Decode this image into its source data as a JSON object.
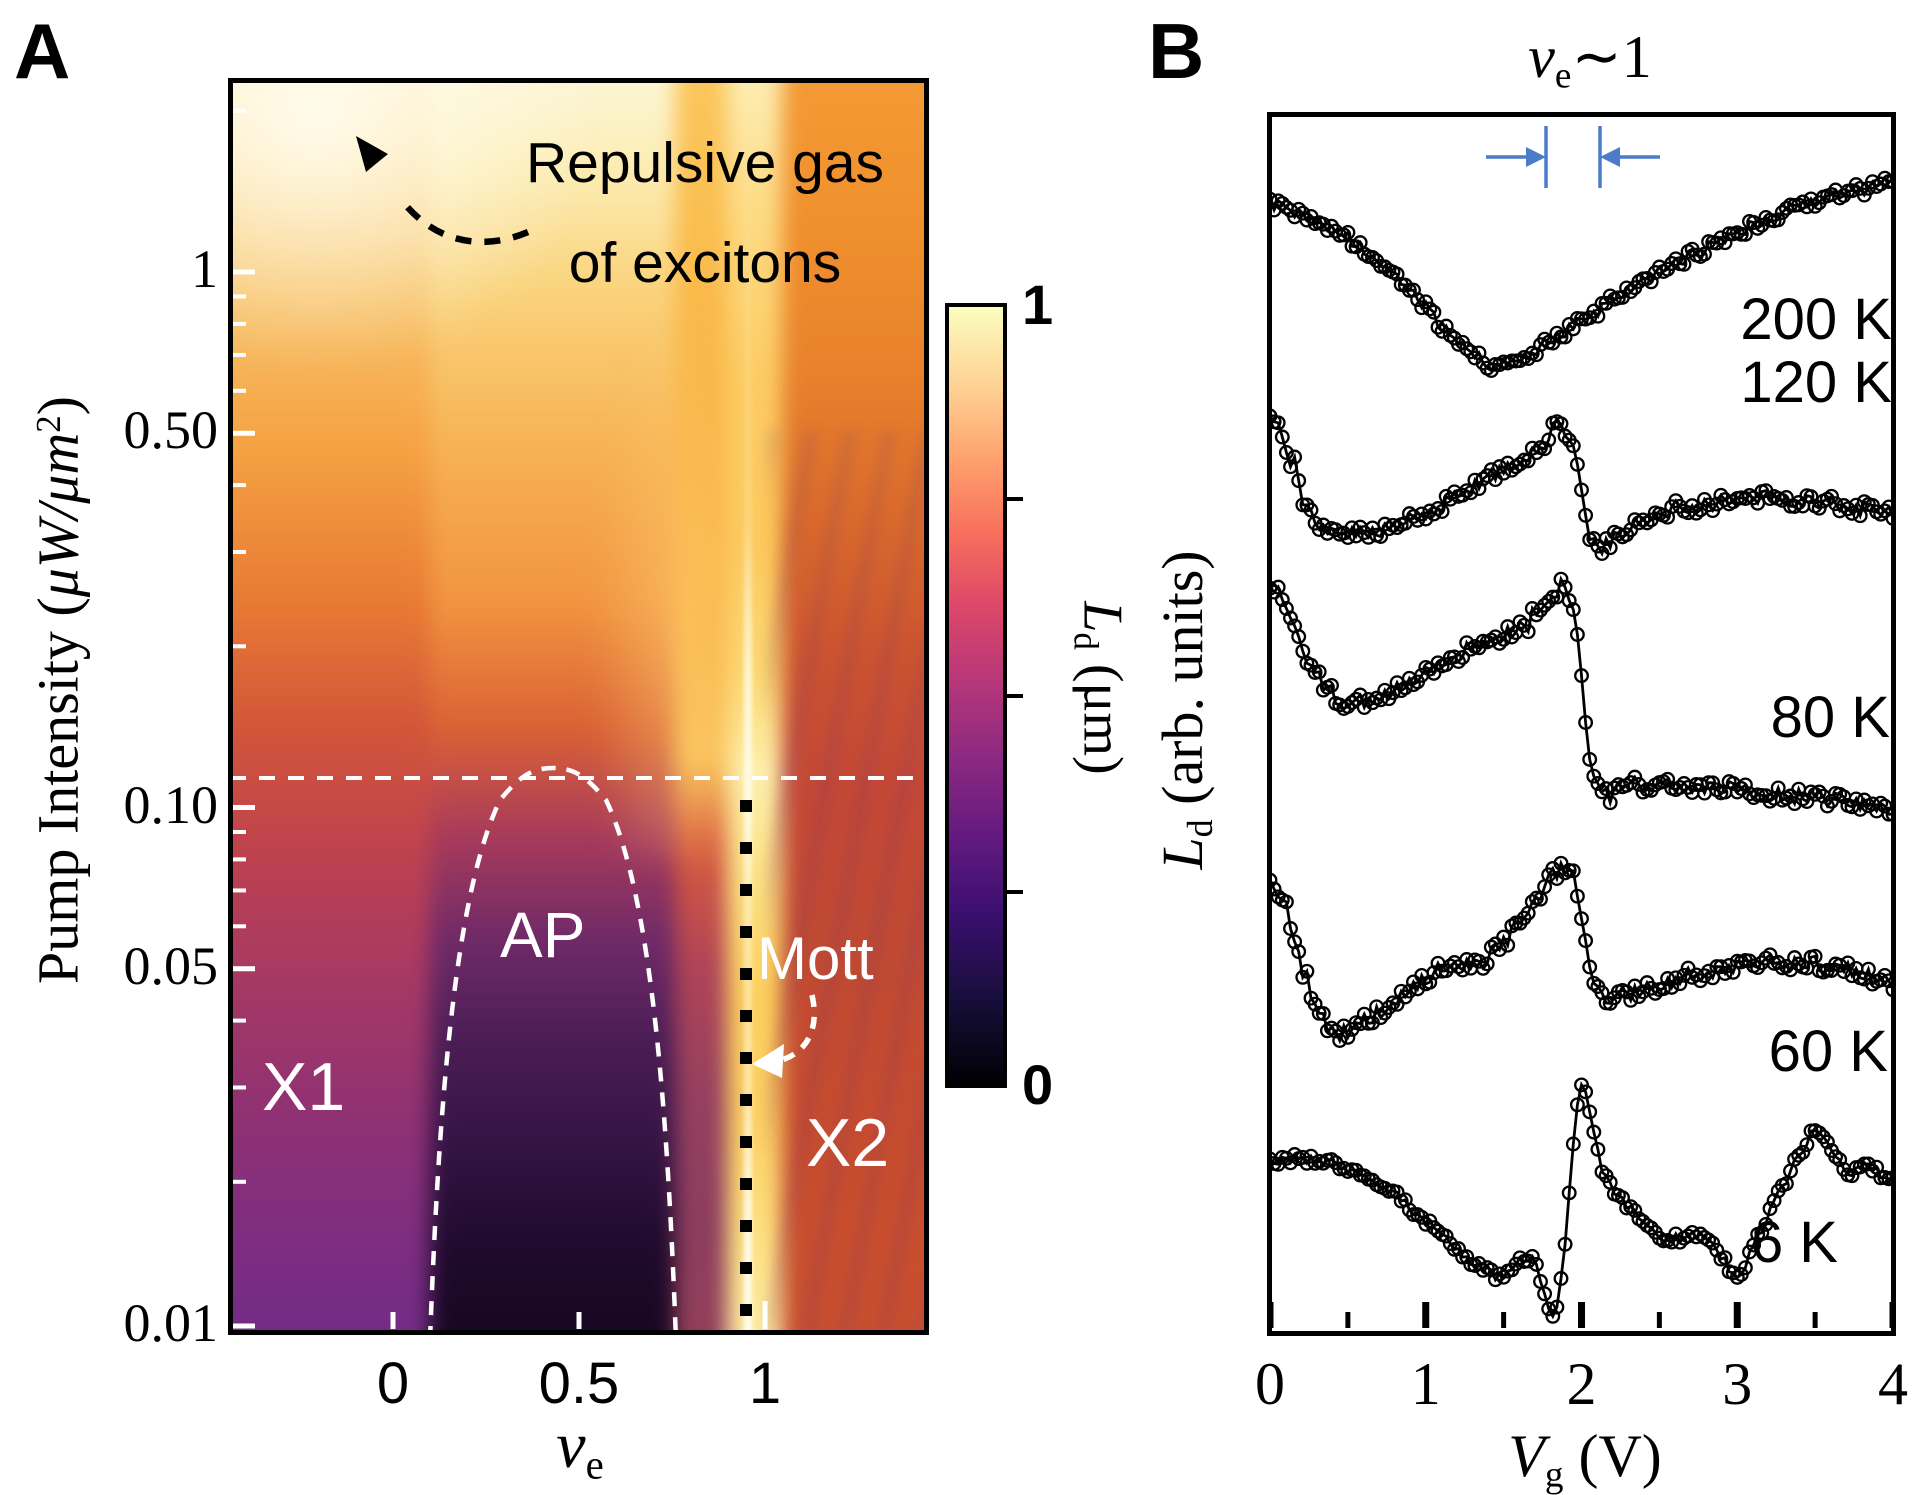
{
  "panel_a": {
    "label": "A",
    "ylabel": {
      "text": "Pump Intensity (",
      "mu": "μW/μm",
      "sup": "2",
      "close": ")"
    },
    "xlabel": {
      "nu": "ν",
      "sub": "e"
    },
    "annotations": {
      "repulsive1": "Repulsive gas",
      "repulsive2": "of excitons",
      "ap": "AP",
      "mott": "Mott",
      "x1": "X1",
      "x2": "X2"
    },
    "colorbar": {
      "max": "1",
      "min": "0",
      "label": {
        "sym": "L",
        "sub": "d",
        "unit": " (μm)"
      }
    }
  },
  "panel_b": {
    "label": "B",
    "title": {
      "nu": "ν",
      "sub": "e",
      "approx": "∼1"
    },
    "ylabel": {
      "sym": "L",
      "sub": "d",
      "unit": " (arb. units)"
    },
    "xlabel": {
      "sym": "V",
      "sub": "g",
      "unit": " (V)"
    }
  },
  "chart_data": [
    {
      "type": "heatmap",
      "panel": "A",
      "title": "",
      "xlabel": "ν_e",
      "ylabel": "Pump Intensity (μW/μm²)",
      "x_range": [
        -0.44,
        1.44
      ],
      "y_range": [
        0.0105,
        2.29
      ],
      "y_scale": "log",
      "x_ticks": [
        {
          "value": 0,
          "label": "0"
        },
        {
          "value": 0.5,
          "label": "0.5"
        },
        {
          "value": 1,
          "label": "1"
        }
      ],
      "y_ticks_major": [
        {
          "value": 1,
          "label": "1"
        },
        {
          "value": 0.5,
          "label": "0.50"
        },
        {
          "value": 0.1,
          "label": "0.10"
        },
        {
          "value": 0.05,
          "label": "0.05"
        },
        {
          "value": 0.01,
          "label": "0.01"
        }
      ],
      "y_ticks_minor": [
        2,
        0.9,
        0.8,
        0.7,
        0.6,
        0.4,
        0.3,
        0.2,
        0.09,
        0.08,
        0.07,
        0.06,
        0.04,
        0.03,
        0.02
      ],
      "colorbar": {
        "label": "L_d (μm)",
        "min": 0,
        "max": 1
      },
      "dashed_hline_value": 0.11,
      "mott_line_x": 0.95,
      "ap_dome": {
        "x_left": 0.1,
        "x_right": 0.76,
        "peak_value": 0.115
      },
      "regions": [
        "X1",
        "AP",
        "Mott",
        "X2"
      ],
      "annotations": [
        "Repulsive gas of excitons"
      ]
    },
    {
      "type": "line",
      "panel": "B",
      "xlabel": "V_g (V)",
      "ylabel": "L_d (arb. units)",
      "x_range": [
        0,
        4
      ],
      "x_ticks": [
        0,
        1,
        2,
        3,
        4
      ],
      "x_minor_ticks": [
        0.5,
        1.5,
        2.5,
        3.5
      ],
      "annotation": "ν_e~1",
      "annotation_x_range": [
        1.77,
        2.12
      ],
      "marker": "open-circle",
      "series": [
        {
          "name": "200 K",
          "points": [
            [
              0,
              1129
            ],
            [
              0.25,
              1118
            ],
            [
              0.5,
              1095
            ],
            [
              0.7,
              1071
            ],
            [
              0.9,
              1043
            ],
            [
              1.1,
              1008
            ],
            [
              1.3,
              978
            ],
            [
              1.45,
              965
            ],
            [
              1.6,
              973
            ],
            [
              1.8,
              993
            ],
            [
              2,
              1011
            ],
            [
              2.2,
              1033
            ],
            [
              2.5,
              1061
            ],
            [
              2.8,
              1085
            ],
            [
              3.1,
              1108
            ],
            [
              3.4,
              1128
            ],
            [
              3.7,
              1141
            ],
            [
              4,
              1151
            ]
          ]
        },
        {
          "name": "120 K",
          "points": [
            [
              0,
              915
            ],
            [
              0.07,
              908
            ],
            [
              0.15,
              863
            ],
            [
              0.25,
              818
            ],
            [
              0.35,
              805
            ],
            [
              0.6,
              801
            ],
            [
              0.8,
              805
            ],
            [
              1,
              821
            ],
            [
              1.2,
              835
            ],
            [
              1.4,
              855
            ],
            [
              1.6,
              871
            ],
            [
              1.75,
              888
            ],
            [
              1.85,
              911
            ],
            [
              1.95,
              895
            ],
            [
              2.02,
              813
            ],
            [
              2.1,
              781
            ],
            [
              2.2,
              793
            ],
            [
              2.35,
              815
            ],
            [
              2.6,
              825
            ],
            [
              2.9,
              831
            ],
            [
              3.2,
              835
            ],
            [
              3.5,
              831
            ],
            [
              3.8,
              825
            ],
            [
              4,
              821
            ]
          ]
        },
        {
          "name": "80 K",
          "points": [
            [
              0,
              751
            ],
            [
              0.08,
              741
            ],
            [
              0.2,
              688
            ],
            [
              0.35,
              645
            ],
            [
              0.5,
              628
            ],
            [
              0.7,
              633
            ],
            [
              0.9,
              653
            ],
            [
              1.1,
              671
            ],
            [
              1.3,
              685
            ],
            [
              1.5,
              697
            ],
            [
              1.7,
              718
            ],
            [
              1.85,
              751
            ],
            [
              1.95,
              733
            ],
            [
              2.05,
              573
            ],
            [
              2.15,
              538
            ],
            [
              2.3,
              545
            ],
            [
              2.5,
              551
            ],
            [
              2.8,
              547
            ],
            [
              3.1,
              541
            ],
            [
              3.4,
              537
            ],
            [
              3.7,
              533
            ],
            [
              4,
              525
            ]
          ]
        },
        {
          "name": "60 K",
          "points": [
            [
              0,
              452
            ],
            [
              0.1,
              428
            ],
            [
              0.2,
              373
            ],
            [
              0.3,
              323
            ],
            [
              0.4,
              298
            ],
            [
              0.55,
              305
            ],
            [
              0.7,
              321
            ],
            [
              0.85,
              338
            ],
            [
              1,
              355
            ],
            [
              1.15,
              371
            ],
            [
              1.3,
              365
            ],
            [
              1.45,
              381
            ],
            [
              1.6,
              408
            ],
            [
              1.75,
              443
            ],
            [
              1.88,
              470
            ],
            [
              1.97,
              453
            ],
            [
              2.05,
              358
            ],
            [
              2.15,
              328
            ],
            [
              2.3,
              338
            ],
            [
              2.5,
              348
            ],
            [
              2.7,
              358
            ],
            [
              2.9,
              365
            ],
            [
              3.1,
              371
            ],
            [
              3.3,
              373
            ],
            [
              3.6,
              368
            ],
            [
              3.8,
              358
            ],
            [
              4,
              348
            ]
          ]
        },
        {
          "name": "6 K",
          "points": [
            [
              0,
              172
            ],
            [
              0.2,
              175
            ],
            [
              0.4,
              170
            ],
            [
              0.6,
              158
            ],
            [
              0.8,
              138
            ],
            [
              1,
              113
            ],
            [
              1.2,
              85
            ],
            [
              1.35,
              63
            ],
            [
              1.5,
              55
            ],
            [
              1.6,
              71
            ],
            [
              1.7,
              78
            ],
            [
              1.78,
              23
            ],
            [
              1.83,
              3
            ],
            [
              1.88,
              63
            ],
            [
              1.93,
              153
            ],
            [
              1.98,
              253
            ],
            [
              2.02,
              251
            ],
            [
              2.08,
              193
            ],
            [
              2.15,
              153
            ],
            [
              2.25,
              133
            ],
            [
              2.4,
              108
            ],
            [
              2.55,
              93
            ],
            [
              2.7,
              98
            ],
            [
              2.85,
              91
            ],
            [
              3,
              48
            ],
            [
              3.08,
              78
            ],
            [
              3.2,
              118
            ],
            [
              3.35,
              168
            ],
            [
              3.5,
              205
            ],
            [
              3.6,
              183
            ],
            [
              3.7,
              158
            ],
            [
              3.8,
              168
            ],
            [
              3.9,
              161
            ],
            [
              4,
              155
            ]
          ]
        }
      ]
    }
  ]
}
